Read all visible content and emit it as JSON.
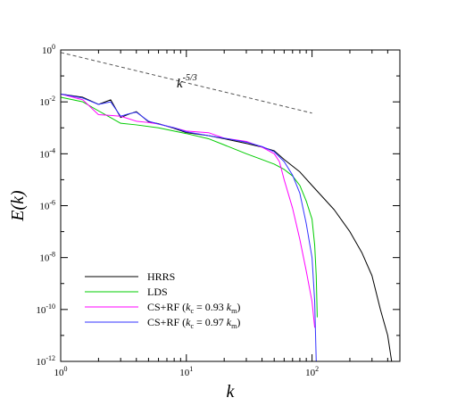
{
  "chart_data": {
    "type": "line",
    "xscale": "log",
    "yscale": "log",
    "xlim": [
      1,
      500
    ],
    "ylim": [
      1e-12,
      1
    ],
    "xlabel": "k",
    "ylabel": "E(k)",
    "x_ticks": [
      {
        "value": 1,
        "base": "10",
        "exp": "0"
      },
      {
        "value": 10,
        "base": "10",
        "exp": "1"
      },
      {
        "value": 100,
        "base": "10",
        "exp": "2"
      }
    ],
    "y_ticks": [
      {
        "value": 1,
        "base": "10",
        "exp": "0"
      },
      {
        "value": 0.01,
        "base": "10",
        "exp": "-2"
      },
      {
        "value": 0.0001,
        "base": "10",
        "exp": "-4"
      },
      {
        "value": 1e-06,
        "base": "10",
        "exp": "-6"
      },
      {
        "value": 1e-08,
        "base": "10",
        "exp": "-8"
      },
      {
        "value": 1e-10,
        "base": "10",
        "exp": "-10"
      },
      {
        "value": 1e-12,
        "base": "10",
        "exp": "-12"
      }
    ],
    "reference_line": {
      "label_base": "k",
      "label_exp": "-5/3",
      "x": [
        1,
        100
      ],
      "y": [
        0.8,
        0.0037
      ],
      "color": "#555555",
      "dash": true
    },
    "legend": {
      "position": "bottom-left"
    },
    "series": [
      {
        "name": "HRRS",
        "color": "#000000",
        "x": [
          1,
          1.5,
          2,
          2.5,
          3,
          3.5,
          4,
          5,
          6,
          8,
          10,
          15,
          20,
          30,
          40,
          50,
          60,
          80,
          100,
          150,
          200,
          250,
          300,
          350,
          400,
          430
        ],
        "y": [
          0.02,
          0.015,
          0.008,
          0.012,
          0.0025,
          0.0034,
          0.0042,
          0.0017,
          0.00145,
          0.00095,
          0.00065,
          0.0005,
          0.00038,
          0.00025,
          0.00018,
          0.00013,
          6e-05,
          2e-05,
          6e-06,
          7e-07,
          1e-07,
          1.5e-08,
          2e-09,
          1e-10,
          1e-11,
          1e-12
        ]
      },
      {
        "name": "LDS",
        "color": "#00cc00",
        "x": [
          1,
          1.5,
          2,
          3,
          4,
          6,
          10,
          15,
          20,
          30,
          40,
          50,
          60,
          70,
          80,
          90,
          100,
          105,
          108,
          110
        ],
        "y": [
          0.015,
          0.01,
          0.0045,
          0.0015,
          0.0013,
          0.001,
          0.0006,
          0.00038,
          0.00022,
          0.0001,
          6e-05,
          4e-05,
          2.5e-05,
          1.4e-05,
          6e-06,
          1.5e-06,
          3e-07,
          3e-08,
          2e-09,
          5e-11
        ]
      },
      {
        "name": "CS+RF (ke = 0.93 km)",
        "label_prefix": "CS+RF (",
        "label_k1": "k",
        "label_sub1": "c",
        "label_mid": " = 0.93 ",
        "label_k2": "k",
        "label_sub2": "m",
        "label_suffix": ")",
        "color": "#ff00ff",
        "x": [
          1,
          1.5,
          2,
          2.5,
          3,
          4,
          5,
          6,
          8,
          10,
          15,
          20,
          30,
          40,
          50,
          55,
          60,
          70,
          80,
          90,
          100,
          105
        ],
        "y": [
          0.02,
          0.012,
          0.0032,
          0.003,
          0.0028,
          0.0018,
          0.0016,
          0.0014,
          0.001,
          0.00075,
          0.00065,
          0.0004,
          0.0003,
          0.00018,
          0.0001,
          5e-05,
          1e-05,
          8e-07,
          5e-08,
          3e-09,
          2e-10,
          2e-11
        ]
      },
      {
        "name": "CS+RF (ke = 0.97 km)",
        "label_prefix": "CS+RF (",
        "label_k1": "k",
        "label_sub1": "c",
        "label_mid": " = 0.97 ",
        "label_k2": "k",
        "label_sub2": "m",
        "label_suffix": ")",
        "color": "#3333ff",
        "x": [
          1,
          1.5,
          2,
          2.5,
          3,
          3.5,
          4,
          5,
          6,
          8,
          10,
          15,
          20,
          30,
          40,
          50,
          60,
          70,
          80,
          90,
          100,
          105,
          108
        ],
        "y": [
          0.02,
          0.014,
          0.008,
          0.01,
          0.0028,
          0.0035,
          0.004,
          0.0018,
          0.0014,
          0.001,
          0.0007,
          0.0005,
          0.0004,
          0.00028,
          0.00019,
          0.00012,
          5e-05,
          1.5e-05,
          3e-06,
          2e-07,
          1e-08,
          2e-10,
          1e-12
        ]
      }
    ]
  }
}
